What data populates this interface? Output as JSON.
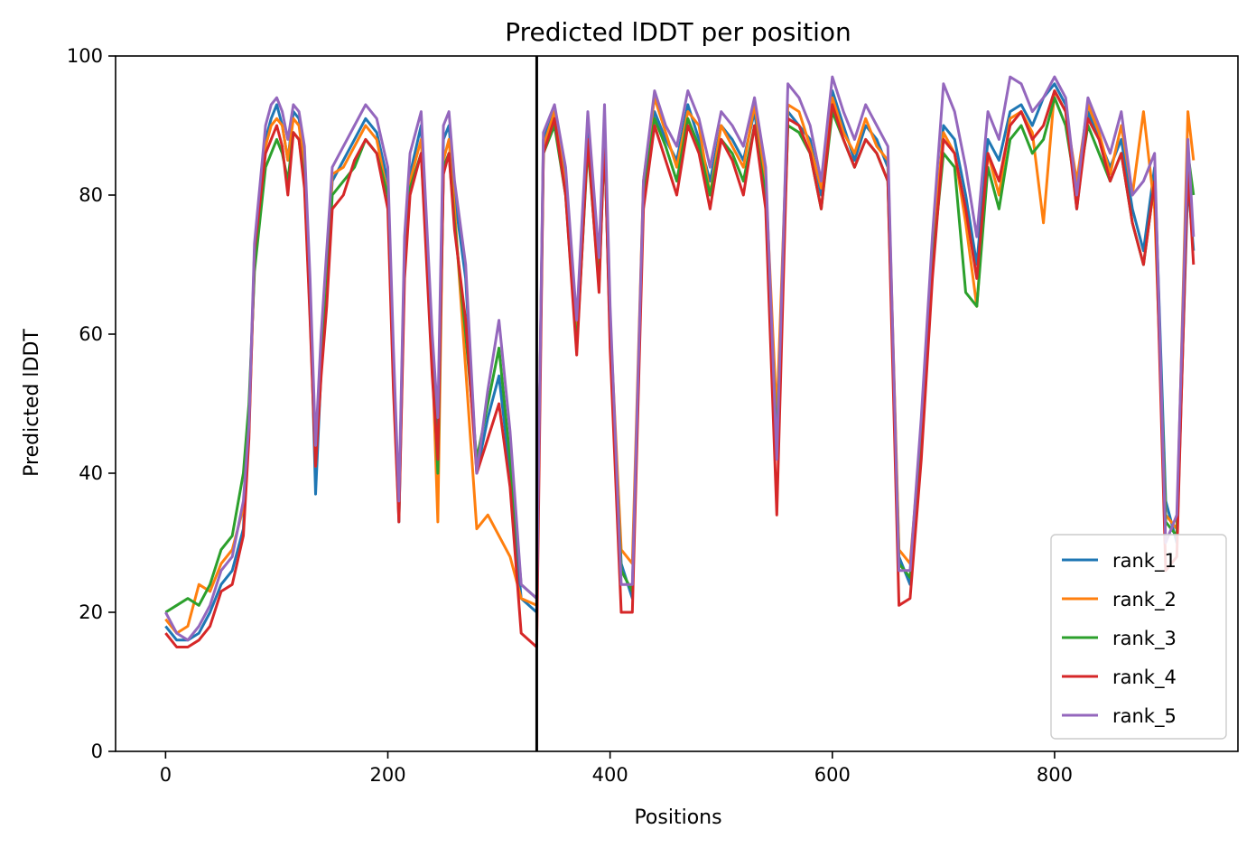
{
  "chart_data": {
    "type": "line",
    "title": "Predicted lDDT per position",
    "xlabel": "Positions",
    "ylabel": "Predicted lDDT",
    "xlim": [
      -45,
      965
    ],
    "ylim": [
      0,
      100
    ],
    "xticks": [
      0,
      200,
      400,
      600,
      800
    ],
    "yticks": [
      0,
      20,
      40,
      60,
      80,
      100
    ],
    "grid": false,
    "legend_position": "bottom-right",
    "vertical_line_x": 334,
    "series": [
      {
        "name": "rank_1",
        "color": "#1f77b4",
        "x": [
          0,
          10,
          20,
          30,
          40,
          50,
          60,
          70,
          75,
          80,
          90,
          95,
          100,
          105,
          110,
          115,
          120,
          125,
          130,
          135,
          140,
          145,
          150,
          160,
          170,
          180,
          190,
          200,
          205,
          210,
          215,
          220,
          230,
          240,
          245,
          250,
          255,
          260,
          270,
          280,
          290,
          300,
          310,
          320,
          334,
          340,
          350,
          360,
          370,
          380,
          390,
          395,
          400,
          410,
          420,
          430,
          440,
          450,
          460,
          470,
          480,
          490,
          500,
          510,
          520,
          530,
          540,
          550,
          560,
          570,
          580,
          590,
          600,
          610,
          620,
          630,
          640,
          650,
          660,
          670,
          680,
          690,
          700,
          710,
          720,
          730,
          740,
          750,
          760,
          770,
          780,
          790,
          800,
          810,
          820,
          830,
          840,
          850,
          860,
          870,
          880,
          890,
          900,
          910,
          920,
          925
        ],
        "values": [
          18,
          16,
          16,
          17,
          20,
          24,
          26,
          32,
          48,
          70,
          88,
          91,
          93,
          90,
          85,
          92,
          91,
          86,
          66,
          37,
          55,
          70,
          82,
          85,
          88,
          91,
          89,
          82,
          55,
          33,
          70,
          83,
          90,
          55,
          45,
          88,
          90,
          80,
          68,
          40,
          48,
          54,
          40,
          22,
          20,
          88,
          92,
          82,
          60,
          90,
          70,
          88,
          60,
          27,
          22,
          80,
          92,
          88,
          85,
          93,
          88,
          82,
          90,
          88,
          85,
          92,
          80,
          46,
          92,
          90,
          88,
          80,
          95,
          90,
          85,
          90,
          88,
          84,
          28,
          24,
          45,
          70,
          90,
          88,
          80,
          70,
          88,
          85,
          92,
          93,
          90,
          94,
          96,
          93,
          78,
          92,
          88,
          84,
          88,
          78,
          72,
          84,
          36,
          30,
          82,
          72
        ]
      },
      {
        "name": "rank_2",
        "color": "#ff7f0e",
        "x": [
          0,
          10,
          20,
          30,
          40,
          50,
          60,
          70,
          75,
          80,
          90,
          95,
          100,
          105,
          110,
          115,
          120,
          125,
          130,
          135,
          140,
          145,
          150,
          160,
          170,
          180,
          190,
          200,
          205,
          210,
          215,
          220,
          230,
          240,
          245,
          250,
          255,
          260,
          270,
          280,
          290,
          300,
          310,
          320,
          334,
          340,
          350,
          360,
          370,
          380,
          390,
          395,
          400,
          410,
          420,
          430,
          440,
          450,
          460,
          470,
          480,
          490,
          500,
          510,
          520,
          530,
          540,
          550,
          560,
          570,
          580,
          590,
          600,
          610,
          620,
          630,
          640,
          650,
          660,
          670,
          680,
          690,
          700,
          710,
          720,
          730,
          740,
          750,
          760,
          770,
          780,
          790,
          800,
          810,
          820,
          830,
          840,
          850,
          860,
          870,
          880,
          890,
          900,
          910,
          920,
          925
        ],
        "values": [
          19,
          17,
          18,
          24,
          23,
          27,
          29,
          35,
          46,
          71,
          87,
          90,
          91,
          90,
          85,
          91,
          90,
          84,
          64,
          41,
          58,
          68,
          83,
          84,
          87,
          90,
          88,
          80,
          53,
          34,
          72,
          82,
          88,
          57,
          33,
          85,
          88,
          78,
          55,
          32,
          34,
          31,
          28,
          22,
          21,
          87,
          92,
          81,
          59,
          88,
          68,
          90,
          62,
          29,
          27,
          82,
          94,
          89,
          84,
          92,
          90,
          80,
          90,
          87,
          84,
          93,
          82,
          48,
          93,
          92,
          87,
          81,
          94,
          89,
          86,
          91,
          87,
          85,
          29,
          27,
          46,
          72,
          89,
          86,
          76,
          64,
          86,
          80,
          91,
          92,
          89,
          76,
          95,
          92,
          82,
          93,
          89,
          83,
          90,
          80,
          92,
          78,
          34,
          32,
          92,
          85
        ]
      },
      {
        "name": "rank_3",
        "color": "#2ca02c",
        "x": [
          0,
          10,
          20,
          30,
          40,
          50,
          60,
          70,
          75,
          80,
          90,
          95,
          100,
          105,
          110,
          115,
          120,
          125,
          130,
          135,
          140,
          145,
          150,
          160,
          170,
          180,
          190,
          200,
          205,
          210,
          215,
          220,
          230,
          240,
          245,
          250,
          255,
          260,
          270,
          280,
          290,
          300,
          310,
          320,
          334,
          340,
          350,
          360,
          370,
          380,
          390,
          395,
          400,
          410,
          420,
          430,
          440,
          450,
          460,
          470,
          480,
          490,
          500,
          510,
          520,
          530,
          540,
          550,
          560,
          570,
          580,
          590,
          600,
          610,
          620,
          630,
          640,
          650,
          660,
          670,
          680,
          690,
          700,
          710,
          720,
          730,
          740,
          750,
          760,
          770,
          780,
          790,
          800,
          810,
          820,
          830,
          840,
          850,
          860,
          870,
          880,
          890,
          900,
          910,
          920,
          925
        ],
        "values": [
          20,
          21,
          22,
          21,
          24,
          29,
          31,
          40,
          50,
          69,
          84,
          86,
          88,
          86,
          82,
          89,
          88,
          82,
          63,
          42,
          56,
          66,
          80,
          82,
          84,
          88,
          86,
          80,
          55,
          35,
          71,
          81,
          86,
          58,
          40,
          84,
          86,
          76,
          60,
          42,
          50,
          58,
          42,
          24,
          22,
          86,
          90,
          80,
          58,
          87,
          67,
          88,
          60,
          26,
          23,
          80,
          91,
          87,
          82,
          91,
          87,
          80,
          88,
          86,
          82,
          90,
          80,
          44,
          90,
          89,
          86,
          78,
          92,
          88,
          84,
          88,
          86,
          82,
          27,
          25,
          44,
          70,
          86,
          84,
          66,
          64,
          84,
          78,
          88,
          90,
          86,
          88,
          94,
          90,
          80,
          90,
          86,
          82,
          86,
          76,
          70,
          82,
          33,
          31,
          86,
          80
        ]
      },
      {
        "name": "rank_4",
        "color": "#d62728",
        "x": [
          0,
          10,
          20,
          30,
          40,
          50,
          60,
          70,
          75,
          80,
          90,
          95,
          100,
          105,
          110,
          115,
          120,
          125,
          130,
          135,
          140,
          145,
          150,
          160,
          170,
          180,
          190,
          200,
          205,
          210,
          215,
          220,
          230,
          240,
          245,
          250,
          255,
          260,
          270,
          280,
          290,
          300,
          310,
          320,
          334,
          340,
          350,
          360,
          370,
          380,
          390,
          395,
          400,
          410,
          420,
          430,
          440,
          450,
          460,
          470,
          480,
          490,
          500,
          510,
          520,
          530,
          540,
          550,
          560,
          570,
          580,
          590,
          600,
          610,
          620,
          630,
          640,
          650,
          660,
          670,
          680,
          690,
          700,
          710,
          720,
          730,
          740,
          750,
          760,
          770,
          780,
          790,
          800,
          810,
          820,
          830,
          840,
          850,
          860,
          870,
          880,
          890,
          900,
          910,
          920,
          925
        ],
        "values": [
          17,
          15,
          15,
          16,
          18,
          23,
          24,
          31,
          45,
          72,
          86,
          88,
          90,
          87,
          80,
          89,
          88,
          81,
          62,
          41,
          54,
          64,
          78,
          80,
          85,
          88,
          86,
          78,
          52,
          33,
          68,
          80,
          86,
          54,
          42,
          83,
          86,
          75,
          62,
          40,
          45,
          50,
          38,
          17,
          15,
          86,
          91,
          80,
          57,
          88,
          66,
          89,
          58,
          20,
          20,
          78,
          90,
          85,
          80,
          90,
          86,
          78,
          88,
          85,
          80,
          90,
          78,
          34,
          91,
          90,
          86,
          78,
          93,
          88,
          84,
          88,
          86,
          82,
          21,
          22,
          42,
          68,
          88,
          86,
          78,
          68,
          86,
          82,
          90,
          92,
          88,
          90,
          95,
          92,
          78,
          91,
          88,
          82,
          86,
          76,
          70,
          82,
          26,
          28,
          84,
          70
        ]
      },
      {
        "name": "rank_5",
        "color": "#9467bd",
        "x": [
          0,
          10,
          20,
          30,
          40,
          50,
          60,
          70,
          75,
          80,
          90,
          95,
          100,
          105,
          110,
          115,
          120,
          125,
          130,
          135,
          140,
          145,
          150,
          160,
          170,
          180,
          190,
          200,
          205,
          210,
          215,
          220,
          230,
          240,
          245,
          250,
          255,
          260,
          270,
          280,
          290,
          300,
          310,
          320,
          334,
          340,
          350,
          360,
          370,
          380,
          390,
          395,
          400,
          410,
          420,
          430,
          440,
          450,
          460,
          470,
          480,
          490,
          500,
          510,
          520,
          530,
          540,
          550,
          560,
          570,
          580,
          590,
          600,
          610,
          620,
          630,
          640,
          650,
          660,
          670,
          680,
          690,
          700,
          710,
          720,
          730,
          740,
          750,
          760,
          770,
          780,
          790,
          800,
          810,
          820,
          830,
          840,
          850,
          860,
          870,
          880,
          890,
          900,
          910,
          920,
          925
        ],
        "values": [
          20,
          17,
          16,
          18,
          21,
          26,
          28,
          36,
          47,
          73,
          90,
          93,
          94,
          92,
          88,
          93,
          92,
          87,
          68,
          44,
          60,
          72,
          84,
          87,
          90,
          93,
          91,
          84,
          58,
          36,
          74,
          86,
          92,
          60,
          48,
          90,
          92,
          82,
          70,
          40,
          52,
          62,
          46,
          24,
          22,
          89,
          93,
          84,
          62,
          92,
          71,
          93,
          64,
          24,
          24,
          82,
          95,
          90,
          87,
          95,
          91,
          84,
          92,
          90,
          87,
          94,
          84,
          42,
          96,
          94,
          90,
          82,
          97,
          92,
          88,
          93,
          90,
          87,
          26,
          26,
          48,
          74,
          96,
          92,
          84,
          74,
          92,
          88,
          97,
          96,
          92,
          94,
          97,
          94,
          80,
          94,
          90,
          86,
          92,
          80,
          82,
          86,
          30,
          34,
          88,
          74
        ]
      }
    ]
  }
}
